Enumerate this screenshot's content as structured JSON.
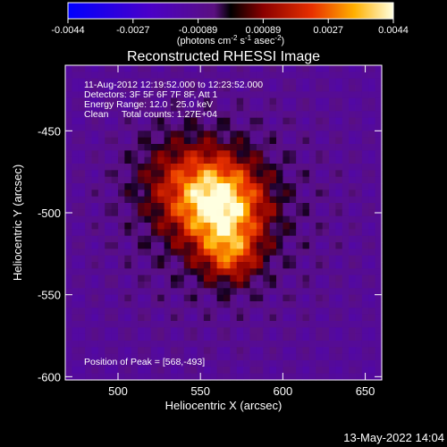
{
  "colorbar": {
    "ticks": [
      "-0.0044",
      "-0.0027",
      "-0.00089",
      "0.00089",
      "0.0027",
      "0.0044"
    ],
    "units_main": "(photons cm",
    "units_exp1": "-2",
    "units_mid": " s",
    "units_exp2": "-1",
    "units_tail": " asec",
    "units_exp3": "-2",
    "units_close": ")"
  },
  "plot": {
    "title": "Reconstructed RHESSI Image",
    "info_lines": [
      "11-Aug-2012 12:19:52.000 to 12:23:52.000",
      "Detectors: 3F 5F 6F 7F 8F, Att 1",
      "Energy Range: 12.0 - 25.0 keV",
      "Clean     Total counts: 1.27E+04"
    ],
    "peak_label": "Position of Peak = [568,-493]",
    "timestamp": "13-May-2022 14:04"
  },
  "chart_data": {
    "type": "heatmap",
    "title": "Reconstructed RHESSI Image",
    "xlabel": "Heliocentric X (arcsec)",
    "ylabel": "Heliocentric Y (arcsec)",
    "xlim": [
      468,
      660
    ],
    "ylim": [
      -602,
      -410
    ],
    "xticks": [
      500,
      550,
      600,
      650
    ],
    "yticks": [
      -450,
      -500,
      -550,
      -600
    ],
    "colorbar_range": [
      -0.0044,
      0.0044
    ],
    "peak_position": [
      568,
      -493
    ],
    "sources": [
      {
        "x": 562,
        "y": -495,
        "amplitude": 1.0,
        "width": 18
      },
      {
        "x": 568,
        "y": -525,
        "amplitude": 0.55,
        "width": 12
      },
      {
        "x": 540,
        "y": -480,
        "amplitude": 0.35,
        "width": 20
      }
    ]
  }
}
